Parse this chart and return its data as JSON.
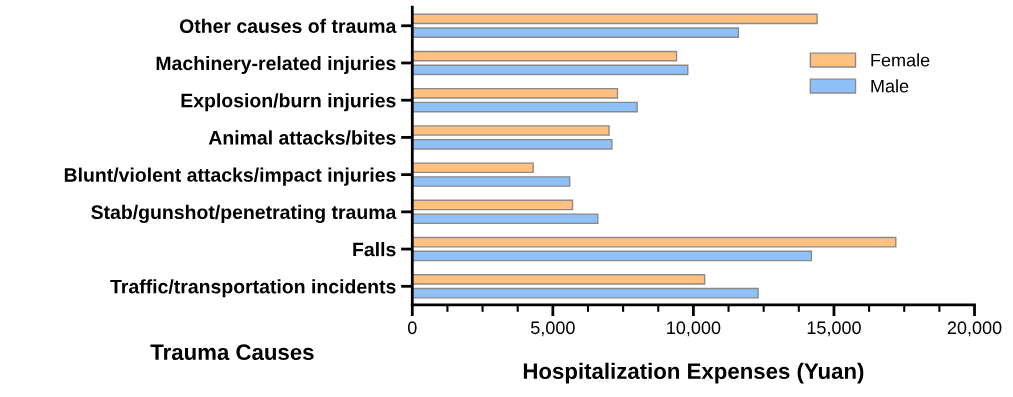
{
  "chart_data": {
    "type": "bar",
    "orientation": "horizontal",
    "categories": [
      "Other causes of trauma",
      "Machinery-related injuries",
      "Explosion/burn injuries",
      "Animal attacks/bites",
      "Blunt/violent attacks/impact injuries",
      "Stab/gunshot/penetrating trauma",
      "Falls",
      "Traffic/transportation incidents"
    ],
    "series": [
      {
        "name": "Female",
        "color": "#ffc080",
        "values": [
          14400,
          9400,
          7300,
          7000,
          4300,
          5700,
          17200,
          10400
        ]
      },
      {
        "name": "Male",
        "color": "#90c0f8",
        "values": [
          11600,
          9800,
          8000,
          7100,
          5600,
          6600,
          14200,
          12300
        ]
      }
    ],
    "xlabel": "Hospitalization Expenses (Yuan)",
    "ylabel": "Trauma Causes",
    "xlim": [
      0,
      20000
    ],
    "xticks": [
      {
        "value": 0,
        "label": "0"
      },
      {
        "value": 5000,
        "label": "5,000"
      },
      {
        "value": 10000,
        "label": "10,000"
      },
      {
        "value": 15000,
        "label": "15,000"
      },
      {
        "value": 20000,
        "label": "20,000"
      }
    ],
    "grid": false,
    "legend": "top right"
  }
}
